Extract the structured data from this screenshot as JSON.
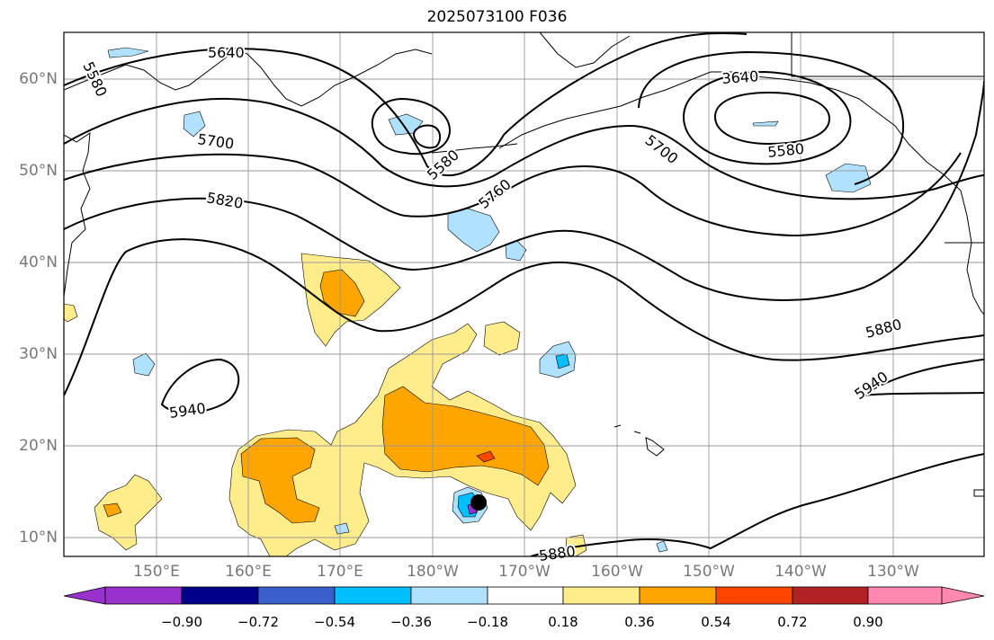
{
  "title": "2025073100 F036",
  "map": {
    "projection": "cylindrical",
    "lon_range": [
      140,
      250
    ],
    "lat_range": [
      8,
      65
    ],
    "lat_ticks": [
      "10°N",
      "20°N",
      "30°N",
      "40°N",
      "50°N",
      "60°N"
    ],
    "lon_ticks": [
      "150°E",
      "160°E",
      "170°E",
      "180°W",
      "170°W",
      "160°W",
      "150°W",
      "140°W",
      "130°W"
    ],
    "gridlines": true,
    "contour_color": "#000000",
    "contour_labels": [
      "5640",
      "5580",
      "5700",
      "5820",
      "5580",
      "5760",
      "3640",
      "5700",
      "5580",
      "5880",
      "5940",
      "5940",
      "5880"
    ],
    "storm_marker": "black-dot"
  },
  "colorbar": {
    "ticks": [
      "−0.90",
      "−0.72",
      "−0.54",
      "−0.36",
      "−0.18",
      "0.18",
      "0.36",
      "0.54",
      "0.72",
      "0.90"
    ],
    "colors": [
      "#9932cc",
      "#00008b",
      "#3a5fcd",
      "#00bfff",
      "#b0e2ff",
      "#ffffff",
      "#ffec8b",
      "#ffa500",
      "#ff4500",
      "#b22222",
      "#ff88b0"
    ]
  }
}
